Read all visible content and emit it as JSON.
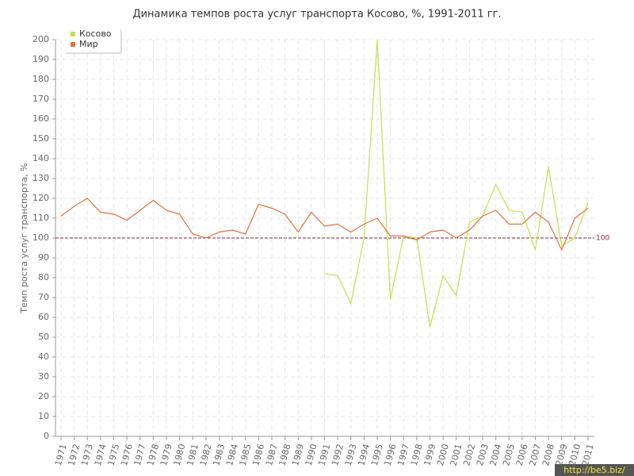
{
  "chart_data": {
    "type": "line",
    "title": "Динамика темпов роста услуг транспорта Косово, %, 1991-2011 гг.",
    "y_label": "Темп роста услуг транспорта, %",
    "x": [
      1971,
      1972,
      1973,
      1974,
      1975,
      1976,
      1977,
      1978,
      1979,
      1980,
      1981,
      1982,
      1983,
      1984,
      1985,
      1986,
      1987,
      1988,
      1989,
      1990,
      1991,
      1992,
      1993,
      1994,
      1995,
      1996,
      1997,
      1998,
      1999,
      2000,
      2001,
      2002,
      2003,
      2004,
      2005,
      2006,
      2007,
      2008,
      2009,
      2010,
      2011
    ],
    "xlim": [
      1971,
      2011
    ],
    "series": [
      {
        "name": "Косово",
        "color": "#c2e04f",
        "values": [
          null,
          null,
          null,
          null,
          null,
          null,
          null,
          null,
          null,
          null,
          null,
          null,
          null,
          null,
          null,
          null,
          null,
          null,
          null,
          null,
          82,
          81,
          67,
          100,
          200,
          69,
          101,
          100,
          55,
          81,
          71,
          108,
          111,
          127,
          114,
          113,
          94,
          136,
          96,
          100,
          118
        ]
      },
      {
        "name": "Мир",
        "color": "#e0703f",
        "values": [
          111,
          116,
          120,
          113,
          112,
          109,
          114,
          119,
          114,
          112,
          102,
          100,
          103,
          104,
          102,
          117,
          115,
          112,
          103,
          113,
          106,
          107,
          103,
          107,
          110,
          101,
          101,
          99,
          103,
          104,
          100,
          104,
          111,
          114,
          107,
          107,
          113,
          108,
          94,
          110,
          115
        ]
      }
    ],
    "ylim": [
      0,
      200
    ],
    "yticks": [
      0,
      10,
      20,
      30,
      40,
      50,
      60,
      70,
      80,
      90,
      100,
      110,
      120,
      130,
      140,
      150,
      160,
      170,
      180,
      190,
      200
    ],
    "reference_line": 100,
    "grid": true,
    "legend": "top-left",
    "watermark": "http://be5.biz/"
  }
}
